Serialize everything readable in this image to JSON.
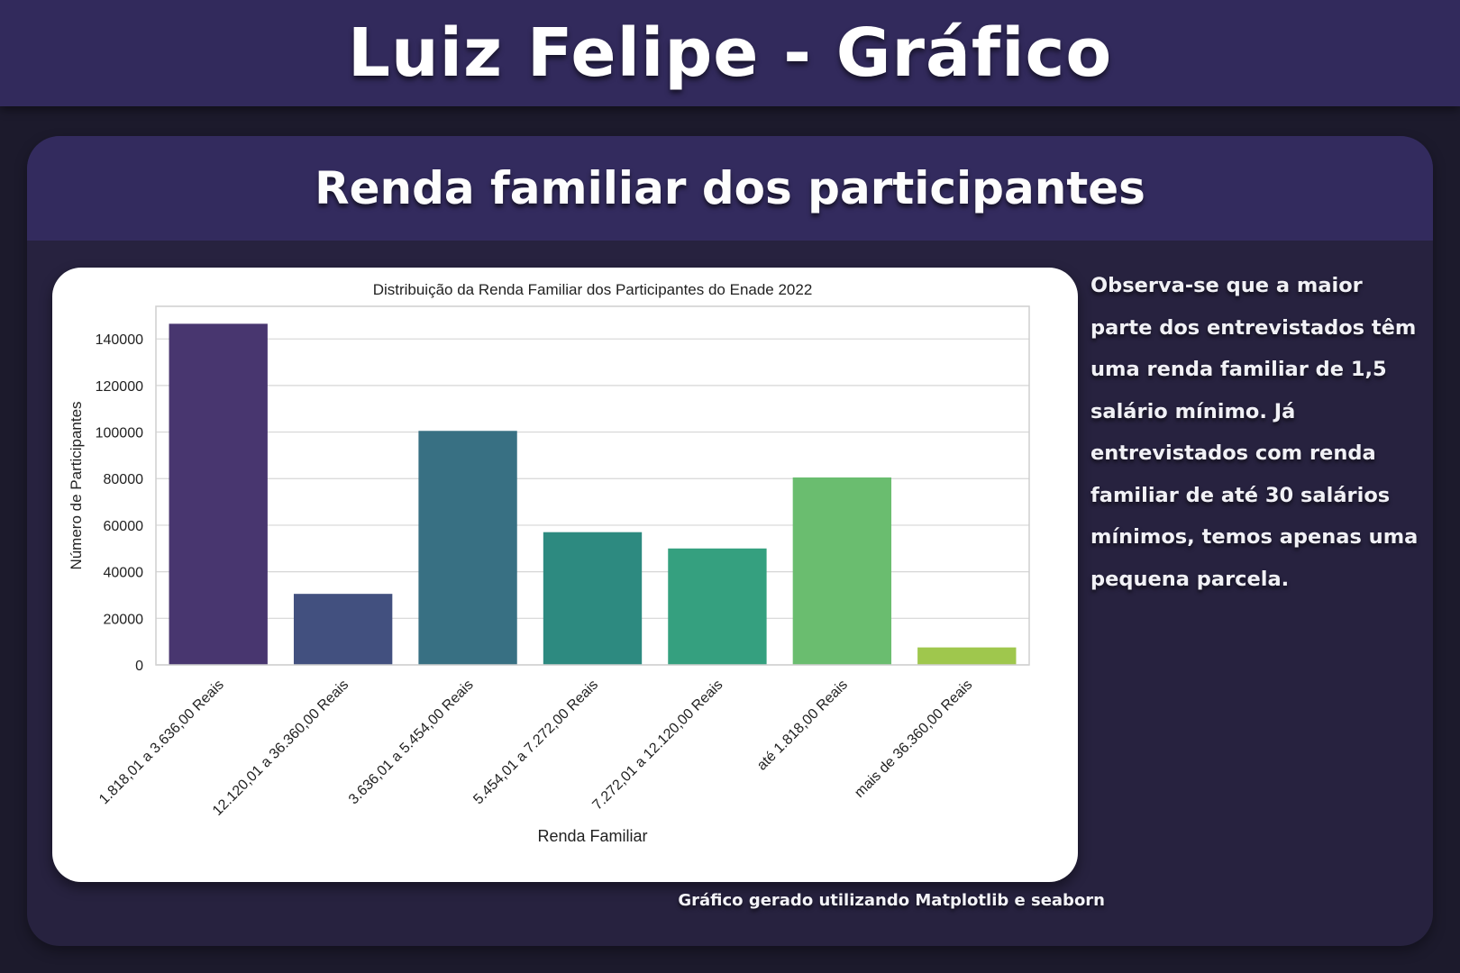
{
  "header": {
    "title": "Luiz Felipe - Gráfico"
  },
  "card": {
    "title": "Renda familiar dos participantes",
    "description": "Observa-se que a maior parte dos entrevistados têm uma renda familiar de 1,5 salário mínimo. Já entrevistados com renda familiar de até 30 salários mínimos, temos apenas  uma pequena parcela.",
    "credit": "Gráfico gerado utilizando Matplotlib e seaborn"
  },
  "chart_data": {
    "type": "bar",
    "title": "Distribuição da Renda Familiar dos Participantes do Enade 2022",
    "xlabel": "Renda Familiar",
    "ylabel": "Número de Participantes",
    "categories": [
      "1.818,01 a 3.636,00 Reais",
      "12.120,01 a 36.360,00 Reais",
      "3.636,01 a 5.454,00 Reais",
      "5.454,01 a 7.272,00 Reais",
      "7.272,01 a 12.120,00 Reais",
      "até 1.818,00 Reais",
      "mais de 36.360,00 Reais"
    ],
    "values": [
      146500,
      30500,
      100500,
      57000,
      50000,
      80500,
      7500
    ],
    "colors": [
      "#48366f",
      "#42507f",
      "#387083",
      "#2d8a80",
      "#35a07f",
      "#6abd6f",
      "#9fc74d"
    ],
    "ylim": [
      0,
      154000
    ],
    "yticks": [
      0,
      20000,
      40000,
      60000,
      80000,
      100000,
      120000,
      140000
    ],
    "grid": true
  }
}
